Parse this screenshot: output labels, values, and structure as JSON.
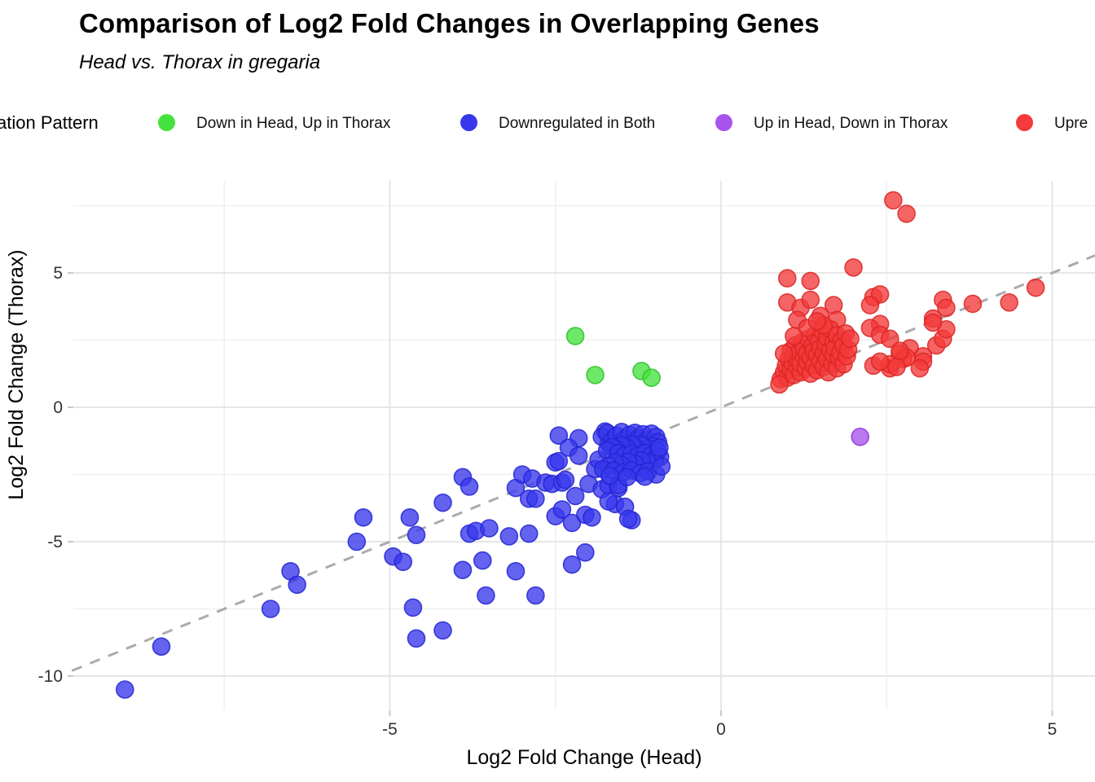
{
  "header": {
    "title": "Comparison of Log2 Fold Changes in Overlapping Genes",
    "subtitle": "Head vs. Thorax in gregaria"
  },
  "legend": {
    "title": "ation Pattern",
    "items": [
      {
        "label": "Down in Head, Up in Thorax",
        "color": "#45E23E"
      },
      {
        "label": "Downregulated in Both",
        "color": "#3737EC"
      },
      {
        "label": "Up in Head, Down in Thorax",
        "color": "#A853EC"
      },
      {
        "label": "Upre",
        "color": "#F43A3A"
      }
    ]
  },
  "colors": {
    "background": "#FFFFFF",
    "grid_major": "#E2E2E2",
    "grid_minor": "#EDEDED",
    "reference_line": "#ABABAB",
    "tick_mark": "#C9C9C9",
    "tick_text": "#333333",
    "axis_title_text": "#000000"
  },
  "chart_data": {
    "type": "scatter",
    "title": "Comparison of Log2 Fold Changes in Overlapping Genes",
    "subtitle": "Head vs. Thorax in gregaria",
    "xlabel": "Log2 Fold Change (Head)",
    "ylabel": "Log2 Fold Change (Thorax)",
    "xlim": [
      -9.8,
      5.65
    ],
    "ylim": [
      -11.3,
      8.4
    ],
    "x_ticks": [
      -5,
      0,
      5
    ],
    "x_tick_labels": [
      "-5",
      "0",
      "5"
    ],
    "x_minor_ticks": [
      -7.5,
      -2.5,
      2.5
    ],
    "y_ticks": [
      5,
      0,
      -5,
      -10
    ],
    "y_tick_labels": [
      "5",
      "0",
      "-5",
      "-10"
    ],
    "y_minor_ticks": [
      7.5,
      2.5,
      -2.5,
      -7.5
    ],
    "grid": "major+minor",
    "legend_position": "top",
    "reference_line": {
      "type": "identity y=x",
      "style": "dashed",
      "color": "#ABABAB"
    },
    "series": [
      {
        "name": "Down in Head, Up in Thorax",
        "color": "#45E23E",
        "stroke": "#2FBF2C",
        "points": [
          [
            -2.2,
            2.65
          ],
          [
            -1.9,
            1.2
          ],
          [
            -1.2,
            1.35
          ],
          [
            -1.05,
            1.1
          ]
        ]
      },
      {
        "name": "Downregulated in Both",
        "color": "#3737EC",
        "stroke": "#2424D4",
        "points": [
          [
            -9.0,
            -10.5
          ],
          [
            -8.45,
            -8.9
          ],
          [
            -6.8,
            -7.5
          ],
          [
            -6.5,
            -6.1
          ],
          [
            -6.4,
            -6.6
          ],
          [
            -5.5,
            -5.0
          ],
          [
            -5.4,
            -4.1
          ],
          [
            -4.95,
            -5.55
          ],
          [
            -4.8,
            -5.75
          ],
          [
            -4.7,
            -4.1
          ],
          [
            -4.6,
            -4.75
          ],
          [
            -4.65,
            -7.45
          ],
          [
            -4.6,
            -8.6
          ],
          [
            -4.2,
            -8.3
          ],
          [
            -4.2,
            -3.55
          ],
          [
            -3.9,
            -2.6
          ],
          [
            -3.8,
            -2.95
          ],
          [
            -3.8,
            -4.7
          ],
          [
            -3.7,
            -4.6
          ],
          [
            -3.5,
            -4.5
          ],
          [
            -3.9,
            -6.05
          ],
          [
            -3.6,
            -5.7
          ],
          [
            -3.55,
            -7.0
          ],
          [
            -3.2,
            -4.8
          ],
          [
            -3.1,
            -3.0
          ],
          [
            -3.0,
            -2.5
          ],
          [
            -2.9,
            -3.4
          ],
          [
            -2.9,
            -4.7
          ],
          [
            -3.1,
            -6.1
          ],
          [
            -2.85,
            -2.65
          ],
          [
            -2.8,
            -3.4
          ],
          [
            -2.8,
            -7.0
          ],
          [
            -2.65,
            -2.8
          ],
          [
            -2.55,
            -2.85
          ],
          [
            -2.5,
            -2.05
          ],
          [
            -2.45,
            -2.0
          ],
          [
            -2.4,
            -2.8
          ],
          [
            -2.35,
            -2.7
          ],
          [
            -2.5,
            -4.05
          ],
          [
            -2.4,
            -3.8
          ],
          [
            -2.2,
            -3.3
          ],
          [
            -2.25,
            -4.3
          ],
          [
            -2.05,
            -5.4
          ],
          [
            -2.25,
            -5.85
          ],
          [
            -2.0,
            -2.85
          ],
          [
            -2.05,
            -4.0
          ],
          [
            -1.95,
            -4.1
          ],
          [
            -1.9,
            -2.3
          ],
          [
            -1.8,
            -3.05
          ],
          [
            -1.7,
            -2.9
          ],
          [
            -1.6,
            -3.6
          ],
          [
            -1.55,
            -3.0
          ],
          [
            -1.55,
            -2.9
          ],
          [
            -1.7,
            -3.5
          ],
          [
            -1.45,
            -3.7
          ],
          [
            -1.35,
            -4.2
          ],
          [
            -1.4,
            -4.15
          ],
          [
            -2.45,
            -1.05
          ],
          [
            -2.15,
            -1.15
          ],
          [
            -2.3,
            -1.5
          ],
          [
            -2.15,
            -1.8
          ],
          [
            -1.75,
            -0.9
          ],
          [
            -1.7,
            -1.35
          ],
          [
            -1.85,
            -1.95
          ],
          [
            -1.8,
            -1.1
          ],
          [
            -1.72,
            -0.95
          ],
          [
            -1.65,
            -1.25
          ],
          [
            -1.58,
            -1.05
          ],
          [
            -1.5,
            -0.92
          ],
          [
            -1.45,
            -1.18
          ],
          [
            -1.38,
            -1.02
          ],
          [
            -1.3,
            -0.95
          ],
          [
            -1.25,
            -1.15
          ],
          [
            -1.18,
            -1.0
          ],
          [
            -1.12,
            -1.22
          ],
          [
            -1.05,
            -0.98
          ],
          [
            -0.98,
            -1.1
          ],
          [
            -0.95,
            -1.3
          ],
          [
            -1.02,
            -1.45
          ],
          [
            -1.1,
            -1.55
          ],
          [
            -1.2,
            -1.4
          ],
          [
            -1.28,
            -1.52
          ],
          [
            -1.35,
            -1.38
          ],
          [
            -1.42,
            -1.5
          ],
          [
            -1.5,
            -1.42
          ],
          [
            -1.58,
            -1.55
          ],
          [
            -1.65,
            -1.48
          ],
          [
            -1.72,
            -1.6
          ],
          [
            -1.55,
            -1.7
          ],
          [
            -1.45,
            -1.78
          ],
          [
            -1.35,
            -1.72
          ],
          [
            -1.25,
            -1.8
          ],
          [
            -1.15,
            -1.7
          ],
          [
            -1.05,
            -1.78
          ],
          [
            -0.95,
            -1.65
          ],
          [
            -0.92,
            -1.85
          ],
          [
            -1.0,
            -1.95
          ],
          [
            -1.1,
            -2.05
          ],
          [
            -1.2,
            -1.98
          ],
          [
            -1.3,
            -2.1
          ],
          [
            -1.4,
            -2.02
          ],
          [
            -1.5,
            -2.15
          ],
          [
            -1.6,
            -2.05
          ],
          [
            -1.7,
            -2.18
          ],
          [
            -1.78,
            -2.3
          ],
          [
            -1.62,
            -2.35
          ],
          [
            -1.48,
            -2.42
          ],
          [
            -1.35,
            -2.35
          ],
          [
            -1.22,
            -2.45
          ],
          [
            -1.1,
            -2.38
          ],
          [
            -0.98,
            -2.5
          ],
          [
            -1.15,
            -2.58
          ],
          [
            -1.42,
            -2.6
          ],
          [
            -1.68,
            -2.55
          ],
          [
            -0.9,
            -2.2
          ],
          [
            -0.93,
            -1.5
          ]
        ]
      },
      {
        "name": "Up in Head, Down in Thorax",
        "color": "#A853EC",
        "stroke": "#8F35D8",
        "points": [
          [
            2.1,
            -1.1
          ]
        ]
      },
      {
        "name": "Upre",
        "color": "#F43A3A",
        "stroke": "#DB2424",
        "points": [
          [
            2.6,
            7.7
          ],
          [
            2.8,
            7.2
          ],
          [
            2.0,
            5.2
          ],
          [
            1.0,
            4.8
          ],
          [
            1.35,
            4.7
          ],
          [
            4.75,
            4.45
          ],
          [
            4.35,
            3.9
          ],
          [
            3.8,
            3.85
          ],
          [
            3.35,
            4.0
          ],
          [
            3.4,
            3.7
          ],
          [
            3.2,
            3.3
          ],
          [
            2.3,
            4.1
          ],
          [
            2.4,
            4.2
          ],
          [
            2.25,
            3.8
          ],
          [
            1.0,
            3.9
          ],
          [
            1.2,
            3.7
          ],
          [
            1.35,
            4.0
          ],
          [
            1.7,
            3.8
          ],
          [
            1.15,
            3.25
          ],
          [
            1.5,
            3.4
          ],
          [
            1.75,
            3.25
          ],
          [
            2.4,
            3.1
          ],
          [
            2.25,
            2.95
          ],
          [
            2.4,
            2.7
          ],
          [
            2.55,
            2.55
          ],
          [
            2.85,
            2.2
          ],
          [
            2.7,
            2.0
          ],
          [
            2.75,
            1.8
          ],
          [
            3.05,
            1.9
          ],
          [
            2.8,
            1.85
          ],
          [
            3.05,
            1.7
          ],
          [
            3.0,
            1.45
          ],
          [
            3.25,
            2.3
          ],
          [
            3.35,
            2.55
          ],
          [
            3.4,
            2.9
          ],
          [
            3.2,
            3.15
          ],
          [
            2.7,
            2.1
          ],
          [
            2.3,
            1.55
          ],
          [
            2.55,
            1.45
          ],
          [
            2.55,
            1.6
          ],
          [
            2.65,
            1.5
          ],
          [
            2.4,
            1.7
          ],
          [
            0.9,
            1.05
          ],
          [
            0.95,
            1.3
          ],
          [
            0.98,
            1.55
          ],
          [
            1.0,
            1.1
          ],
          [
            1.02,
            1.8
          ],
          [
            1.05,
            1.4
          ],
          [
            1.05,
            2.1
          ],
          [
            1.08,
            1.65
          ],
          [
            1.1,
            1.2
          ],
          [
            1.1,
            1.95
          ],
          [
            1.12,
            2.3
          ],
          [
            1.15,
            1.5
          ],
          [
            1.15,
            1.78
          ],
          [
            1.18,
            2.05
          ],
          [
            1.2,
            1.3
          ],
          [
            1.2,
            1.62
          ],
          [
            1.22,
            2.42
          ],
          [
            1.25,
            1.9
          ],
          [
            1.25,
            2.18
          ],
          [
            1.28,
            1.45
          ],
          [
            1.3,
            1.7
          ],
          [
            1.3,
            2.0
          ],
          [
            1.32,
            2.55
          ],
          [
            1.35,
            1.25
          ],
          [
            1.35,
            1.85
          ],
          [
            1.38,
            2.28
          ],
          [
            1.4,
            1.55
          ],
          [
            1.4,
            2.1
          ],
          [
            1.42,
            2.7
          ],
          [
            1.45,
            1.38
          ],
          [
            1.45,
            1.95
          ],
          [
            1.48,
            2.45
          ],
          [
            1.5,
            1.7
          ],
          [
            1.5,
            2.2
          ],
          [
            1.52,
            2.85
          ],
          [
            1.55,
            1.5
          ],
          [
            1.55,
            2.02
          ],
          [
            1.58,
            2.35
          ],
          [
            1.6,
            1.8
          ],
          [
            1.6,
            2.6
          ],
          [
            1.62,
            1.3
          ],
          [
            1.65,
            2.12
          ],
          [
            1.65,
            2.9
          ],
          [
            1.68,
            1.62
          ],
          [
            1.7,
            1.95
          ],
          [
            1.7,
            2.42
          ],
          [
            1.72,
            2.2
          ],
          [
            1.75,
            1.45
          ],
          [
            1.75,
            2.68
          ],
          [
            1.78,
            1.85
          ],
          [
            1.8,
            2.05
          ],
          [
            1.82,
            2.5
          ],
          [
            1.85,
            1.6
          ],
          [
            1.85,
            2.3
          ],
          [
            1.88,
            2.75
          ],
          [
            1.9,
            1.9
          ],
          [
            1.92,
            2.15
          ],
          [
            1.95,
            2.55
          ],
          [
            1.55,
            3.05
          ],
          [
            1.3,
            2.95
          ],
          [
            1.1,
            2.65
          ],
          [
            0.95,
            2.0
          ],
          [
            0.88,
            0.85
          ],
          [
            1.45,
            3.2
          ]
        ]
      }
    ]
  }
}
